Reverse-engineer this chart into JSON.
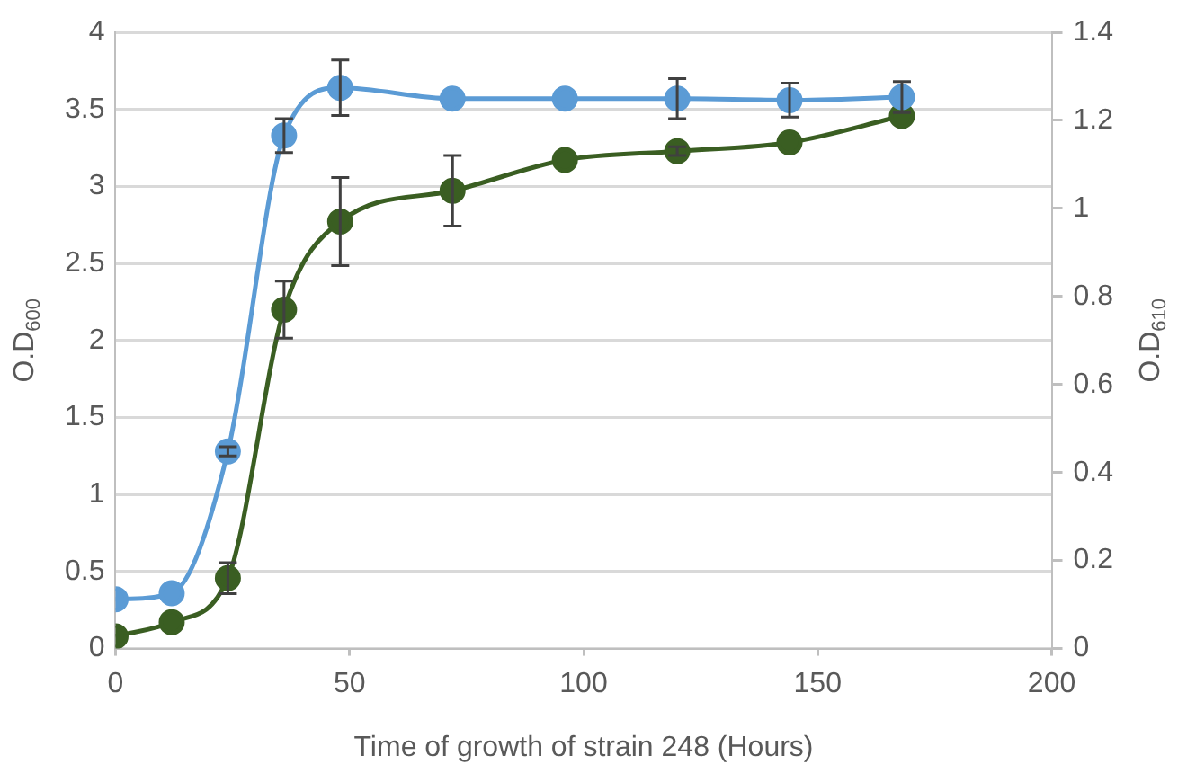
{
  "chart_data": {
    "type": "line",
    "xlabel": "Time of growth of strain 248 (Hours)",
    "ylabel": "O.D$_{600}$",
    "y2label": "O.D$_{610}$",
    "x": [
      0,
      12,
      24,
      36,
      48,
      72,
      96,
      120,
      144,
      168
    ],
    "series": [
      {
        "color": "#5b9bd5",
        "values": [
          0.32,
          0.36,
          1.28,
          3.33,
          3.64,
          3.57,
          3.57,
          3.57,
          3.56,
          3.58
        ],
        "errors": [
          null,
          null,
          0.03,
          0.11,
          0.18,
          null,
          null,
          0.13,
          0.11,
          0.1
        ]
      },
      {
        "color": "#3a5e22",
        "axis": "y2",
        "values": [
          0.028,
          0.06,
          0.16,
          0.77,
          0.97,
          1.04,
          1.11,
          1.13,
          1.15,
          1.21
        ],
        "errors": [
          null,
          null,
          0.035,
          0.065,
          0.1,
          0.08,
          null,
          0.01,
          null,
          null
        ]
      }
    ],
    "xlim": [
      0,
      200
    ],
    "xticks": [
      0,
      50,
      100,
      150,
      200
    ],
    "ylim": [
      0,
      4
    ],
    "yticks": [
      0,
      0.5,
      1,
      1.5,
      2,
      2.5,
      3,
      3.5,
      4
    ],
    "y2lim": [
      0,
      1.4
    ],
    "y2ticks": [
      0,
      0.2,
      0.4,
      0.6,
      0.8,
      1,
      1.2,
      1.4
    ],
    "grid": "y",
    "legend": false,
    "marker": "circle",
    "line_style": "solid"
  }
}
